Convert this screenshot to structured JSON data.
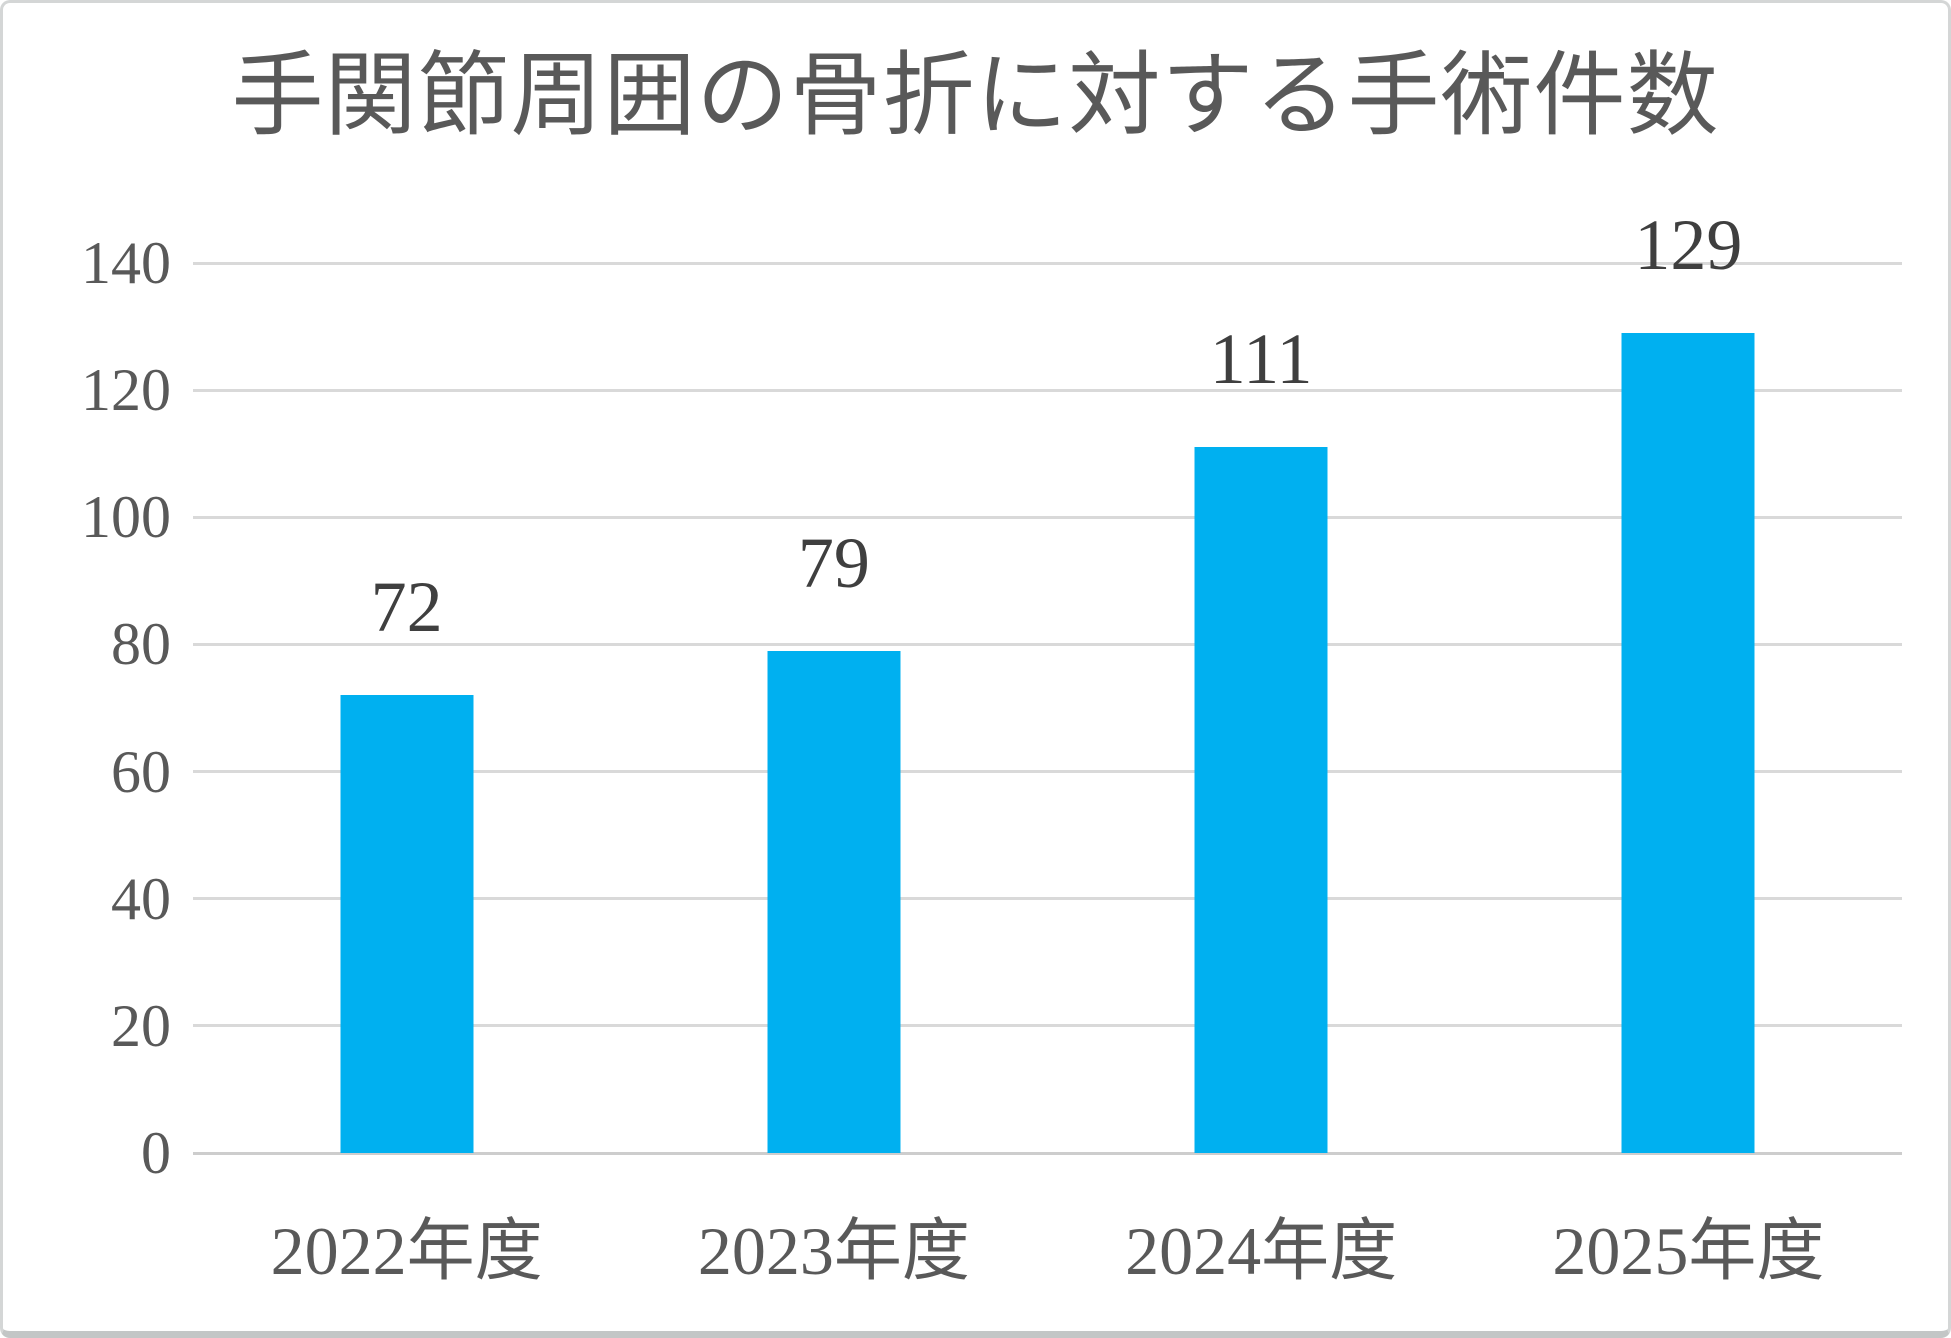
{
  "chart_title": "手関節周囲の骨折に対する手術件数",
  "chart_data": {
    "type": "bar",
    "categories": [
      "2022年度",
      "2023年度",
      "2024年度",
      "2025年度"
    ],
    "values": [
      72,
      79,
      111,
      129
    ],
    "data_labels": [
      "72",
      "79",
      "111",
      "129"
    ],
    "title": "手関節周囲の骨折に対する手術件数",
    "xlabel": "",
    "ylabel": "",
    "ylim": [
      0,
      140
    ],
    "yticks": [
      0,
      20,
      40,
      60,
      80,
      100,
      120,
      140
    ],
    "grid": true,
    "legend": false
  },
  "style": {
    "bar_color": "#00B0F0",
    "grid_color": "#D9D9D9",
    "zero_line_color": "#CDCDCD",
    "title_color": "#595959",
    "axis_text_color": "#595959",
    "data_label_color": "#3F3F3F",
    "background_color": "#FFFFFF",
    "border_color": "#D4D6D6"
  }
}
